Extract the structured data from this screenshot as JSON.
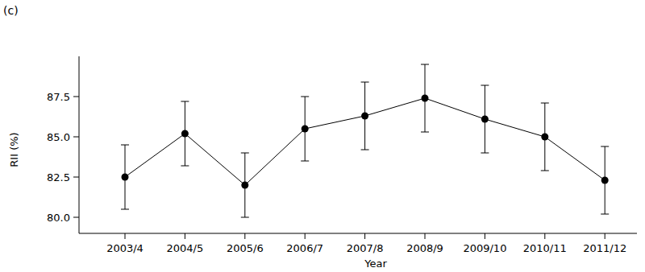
{
  "chart_data": {
    "type": "line",
    "panel_label": "(c)",
    "x_label": "Year",
    "y_label": "RII (%)",
    "categories": [
      "2003/4",
      "2004/5",
      "2005/6",
      "2006/7",
      "2007/8",
      "2008/9",
      "2009/10",
      "2010/11",
      "2011/12"
    ],
    "values": [
      82.5,
      85.2,
      82.0,
      85.5,
      86.3,
      87.4,
      86.1,
      85.0,
      82.3
    ],
    "errors": [
      2.0,
      2.0,
      2.0,
      2.0,
      2.1,
      2.1,
      2.1,
      2.1,
      2.1
    ],
    "color": "#000000",
    "marker": "circle",
    "line_style": "solid",
    "ylim": [
      79,
      90
    ],
    "yticks": [
      {
        "value": 80,
        "label": "80.0"
      },
      82.5,
      {
        "value": 85,
        "label": "85.0"
      },
      87.5
    ],
    "grid": false
  }
}
